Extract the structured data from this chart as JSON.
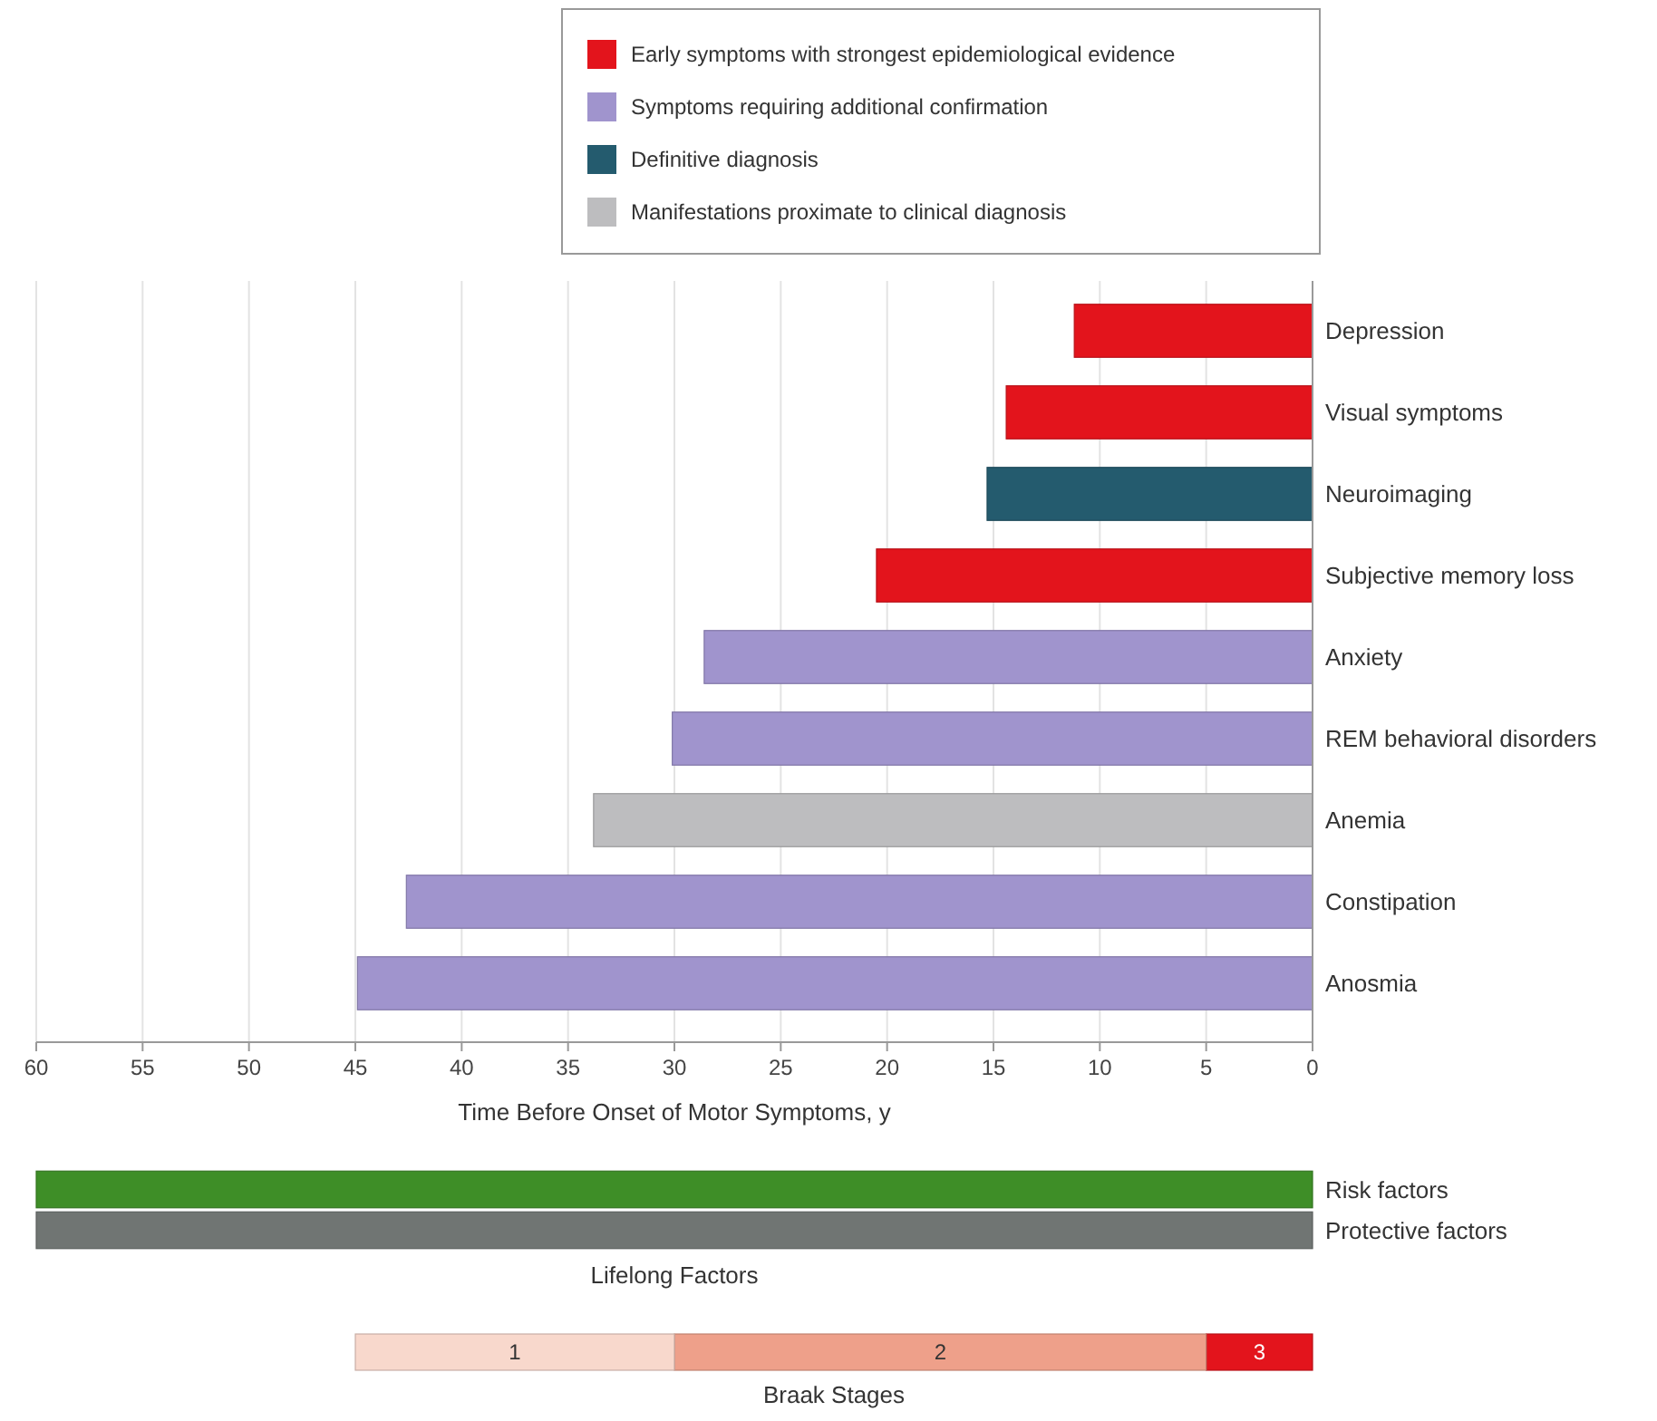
{
  "chart_data": [
    {
      "type": "bar",
      "orientation": "horizontal",
      "stacked": true,
      "xlabel": "Time Before Onset of Motor Symptoms, y",
      "categories": [
        "Depression",
        "Visual symptoms",
        "Neuroimaging",
        "Subjective memory loss",
        "Anxiety",
        "REM behavioral disorders",
        "Anemia",
        "Constipation",
        "Anosmia"
      ],
      "series": [
        {
          "name": "Early symptoms with strongest epidemiological evidence",
          "color": "#e3141c",
          "values": [
            11.2,
            14.4,
            null,
            20.5,
            null,
            null,
            null,
            null,
            null
          ]
        },
        {
          "name": "Symptoms requiring additional confirmation",
          "color": "#a094cd",
          "values": [
            null,
            null,
            null,
            null,
            28.6,
            30.1,
            null,
            42.6,
            44.9
          ]
        },
        {
          "name": "Definitive diagnosis",
          "color": "#245b6e",
          "values": [
            null,
            null,
            15.3,
            null,
            null,
            null,
            null,
            null,
            null
          ]
        },
        {
          "name": "Manifestations proximate to clinical diagnosis",
          "color": "#bdbdbf",
          "values": [
            null,
            null,
            null,
            null,
            null,
            null,
            33.8,
            null,
            null
          ]
        }
      ],
      "xlim": [
        60,
        0
      ],
      "xticks": [
        60,
        55,
        50,
        45,
        40,
        35,
        30,
        25,
        20,
        15,
        10,
        5,
        0
      ],
      "grid": "x",
      "legend": "top"
    },
    {
      "type": "bar",
      "orientation": "horizontal",
      "xlabel": "Lifelong Factors",
      "categories": [
        "Risk factors",
        "Protective factors"
      ],
      "values": [
        60,
        60
      ],
      "colors": [
        "#3e8e27",
        "#707573"
      ],
      "xlim": [
        60,
        0
      ],
      "tick_labels": "y"
    },
    {
      "type": "bar",
      "orientation": "horizontal",
      "stacked": true,
      "xlabel": "Braak Stages",
      "categories": [
        null
      ],
      "series": [
        {
          "name": "3",
          "color": "#e3141c",
          "values": [
            5
          ]
        },
        {
          "name": "2",
          "color": "#eea08a",
          "values": [
            25
          ]
        },
        {
          "name": "1",
          "color": "#f8d8cc",
          "values": [
            15
          ]
        }
      ],
      "xlim": [
        60,
        0
      ],
      "tick_labels": "y"
    }
  ]
}
